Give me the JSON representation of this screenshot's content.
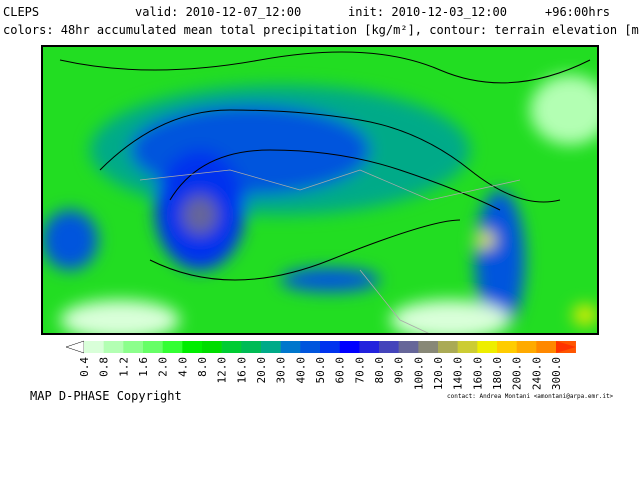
{
  "header": {
    "model": "CLEPS",
    "valid": "valid: 2010-12-07_12:00",
    "init": "init: 2010-12-03_12:00",
    "lead": "+96:00hrs",
    "description": "colors: 48hr accumulated mean total precipitation [kg/m²], contour: terrain elevation [m]"
  },
  "legend": {
    "labels": [
      "0.4",
      "0.8",
      "1.2",
      "1.6",
      "2.0",
      "4.0",
      "8.0",
      "12.0",
      "16.0",
      "20.0",
      "30.0",
      "40.0",
      "50.0",
      "60.0",
      "70.0",
      "80.0",
      "90.0",
      "100.0",
      "120.0",
      "140.0",
      "160.0",
      "180.0",
      "200.0",
      "240.0",
      "300.0"
    ],
    "colors": [
      "#d9ffd9",
      "#b3ffb3",
      "#8cff8c",
      "#66ff66",
      "#33ff33",
      "#00ee00",
      "#00dd00",
      "#00cc33",
      "#00bb55",
      "#00aa88",
      "#0077cc",
      "#0055dd",
      "#0033ee",
      "#0000ff",
      "#2222dd",
      "#4444bb",
      "#666699",
      "#888877",
      "#aaaa55",
      "#cccc33",
      "#eeee00",
      "#ffcc00",
      "#ffaa00",
      "#ff8800",
      "#ff5500"
    ],
    "below_color": "#ffffff",
    "above_color": "#ff3300"
  },
  "footer": {
    "copyright": "MAP D-PHASE Copyright",
    "contact": "contact: Andrea Montani <amontani@arpa.emr.it>"
  }
}
